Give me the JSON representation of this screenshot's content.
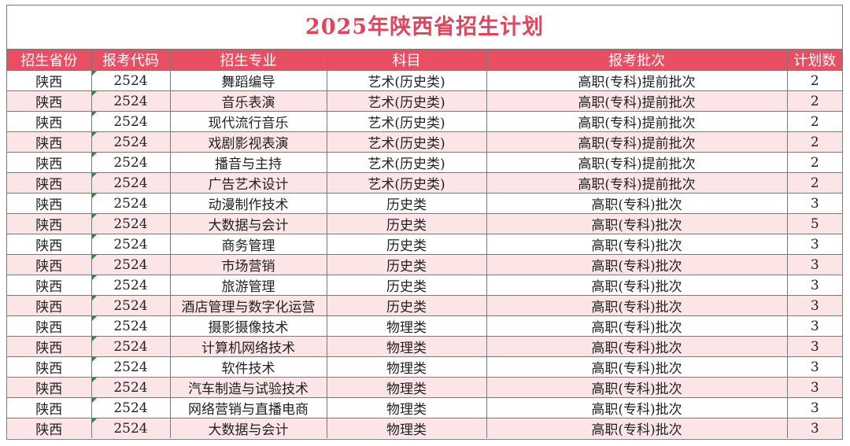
{
  "title": "2025年陕西省招生计划",
  "headers": [
    "招生省份",
    "报考代码",
    "招生专业",
    "科目",
    "报考批次",
    "计划数"
  ],
  "rows": [
    [
      "陕西",
      "2524",
      "舞蹈编导",
      "艺术(历史类)",
      "高职(专科)提前批次",
      "2"
    ],
    [
      "陕西",
      "2524",
      "音乐表演",
      "艺术(历史类)",
      "高职(专科)提前批次",
      "2"
    ],
    [
      "陕西",
      "2524",
      "现代流行音乐",
      "艺术(历史类)",
      "高职(专科)提前批次",
      "2"
    ],
    [
      "陕西",
      "2524",
      "戏剧影视表演",
      "艺术(历史类)",
      "高职(专科)提前批次",
      "2"
    ],
    [
      "陕西",
      "2524",
      "播音与主持",
      "艺术(历史类)",
      "高职(专科)提前批次",
      "2"
    ],
    [
      "陕西",
      "2524",
      "广告艺术设计",
      "艺术(历史类)",
      "高职(专科)提前批次",
      "2"
    ],
    [
      "陕西",
      "2524",
      "动漫制作技术",
      "历史类",
      "高职(专科)批次",
      "3"
    ],
    [
      "陕西",
      "2524",
      "大数据与会计",
      "历史类",
      "高职(专科)批次",
      "5"
    ],
    [
      "陕西",
      "2524",
      "商务管理",
      "历史类",
      "高职(专科)批次",
      "3"
    ],
    [
      "陕西",
      "2524",
      "市场营销",
      "历史类",
      "高职(专科)批次",
      "3"
    ],
    [
      "陕西",
      "2524",
      "旅游管理",
      "历史类",
      "高职(专科)批次",
      "3"
    ],
    [
      "陕西",
      "2524",
      "酒店管理与数字化运营",
      "历史类",
      "高职(专科)批次",
      "3"
    ],
    [
      "陕西",
      "2524",
      "摄影摄像技术",
      "物理类",
      "高职(专科)批次",
      "3"
    ],
    [
      "陕西",
      "2524",
      "计算机网络技术",
      "物理类",
      "高职(专科)批次",
      "3"
    ],
    [
      "陕西",
      "2524",
      "软件技术",
      "物理类",
      "高职(专科)批次",
      "3"
    ],
    [
      "陕西",
      "2524",
      "汽车制造与试验技术",
      "物理类",
      "高职(专科)批次",
      "3"
    ],
    [
      "陕西",
      "2524",
      "网络营销与直播电商",
      "物理类",
      "高职(专科)批次",
      "3"
    ],
    [
      "陕西",
      "2524",
      "大数据与会计",
      "物理类",
      "高职(专科)批次",
      "3"
    ]
  ],
  "colors": {
    "title": "#e2445b",
    "header_bg": "#e84f63",
    "alt_row": "#fbe5e7"
  }
}
